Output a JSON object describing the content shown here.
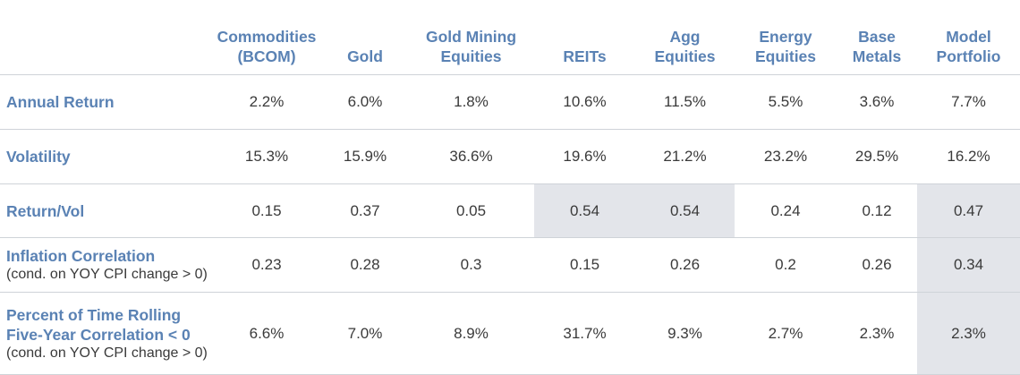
{
  "table": {
    "columns": [
      {
        "line1": "Commodities",
        "line2": "(BCOM)"
      },
      {
        "line1": "",
        "line2": "Gold"
      },
      {
        "line1": "Gold Mining",
        "line2": "Equities"
      },
      {
        "line1": "",
        "line2": "REITs"
      },
      {
        "line1": "Agg",
        "line2": "Equities"
      },
      {
        "line1": "Energy",
        "line2": "Equities"
      },
      {
        "line1": "Base",
        "line2": "Metals"
      },
      {
        "line1": "Model",
        "line2": "Portfolio"
      }
    ],
    "rows": [
      {
        "label_lines": [
          "Annual Return"
        ],
        "note": "",
        "values": [
          "2.2%",
          "6.0%",
          "1.8%",
          "10.6%",
          "11.5%",
          "5.5%",
          "3.6%",
          "7.7%"
        ]
      },
      {
        "label_lines": [
          "Volatility"
        ],
        "note": "",
        "values": [
          "15.3%",
          "15.9%",
          "36.6%",
          "19.6%",
          "21.2%",
          "23.2%",
          "29.5%",
          "16.2%"
        ]
      },
      {
        "label_lines": [
          "Return/Vol"
        ],
        "note": "",
        "values": [
          "0.15",
          "0.37",
          "0.05",
          "0.54",
          "0.54",
          "0.24",
          "0.12",
          "0.47"
        ]
      },
      {
        "label_lines": [
          "Inflation Correlation"
        ],
        "note": "(cond. on YOY CPI change > 0)",
        "values": [
          "0.23",
          "0.28",
          "0.3",
          "0.15",
          "0.26",
          "0.2",
          "0.26",
          "0.34"
        ]
      },
      {
        "label_lines": [
          "Percent of Time Rolling",
          "Five-Year Correlation < 0"
        ],
        "note": "(cond. on YOY CPI change > 0)",
        "values": [
          "6.6%",
          "7.0%",
          "8.9%",
          "31.7%",
          "9.3%",
          "2.7%",
          "2.3%",
          "2.3%"
        ]
      }
    ]
  },
  "colors": {
    "header_text": "#5a82b4",
    "body_text": "#3a3a3a",
    "highlight_cell": "#e3e5ea",
    "rule_line": "#cfd3d8"
  }
}
